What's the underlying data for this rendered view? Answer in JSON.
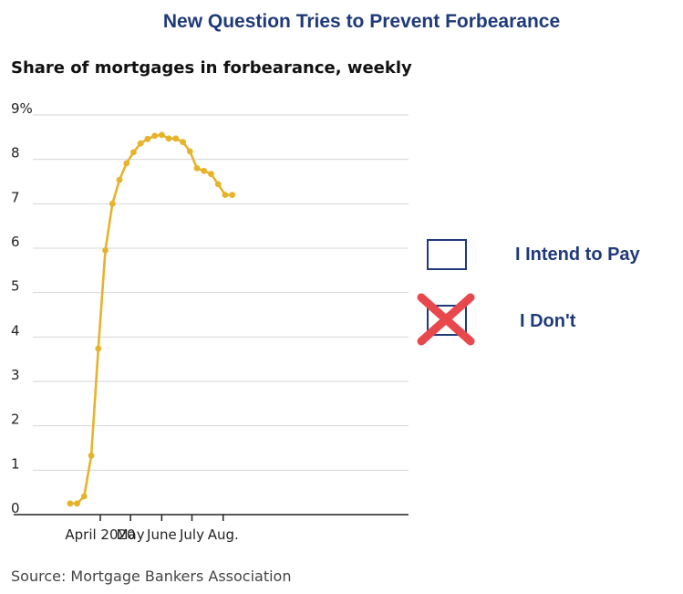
{
  "headline": "New Question Tries to Prevent Forbearance",
  "chart_data": {
    "type": "line",
    "title": "Share of mortgages in forbearance, weekly",
    "source": "Source: Mortgage Bankers Association",
    "xlabel": "",
    "ylabel": "",
    "ylim": [
      0,
      9
    ],
    "y_ticks": [
      "0",
      "1",
      "2",
      "3",
      "4",
      "5",
      "6",
      "7",
      "8",
      "9%"
    ],
    "x_ticks": [
      {
        "label": "April 2020",
        "date": "2020-04-01"
      },
      {
        "label": "May",
        "date": "2020-05-01"
      },
      {
        "label": "June",
        "date": "2020-06-01"
      },
      {
        "label": "July",
        "date": "2020-07-01"
      },
      {
        "label": "Aug.",
        "date": "2020-08-01"
      }
    ],
    "x_range": [
      "2020-03-01",
      "2020-08-13"
    ],
    "grid": true,
    "legend": "none",
    "line_color": "#e6b32a",
    "series": [
      {
        "x": [
          "2020-03-02",
          "2020-03-09",
          "2020-03-16",
          "2020-03-23",
          "2020-03-30",
          "2020-04-06",
          "2020-04-13",
          "2020-04-20",
          "2020-04-27",
          "2020-05-04",
          "2020-05-11",
          "2020-05-18",
          "2020-05-25",
          "2020-06-01",
          "2020-06-08",
          "2020-06-15",
          "2020-06-22",
          "2020-06-29",
          "2020-07-06",
          "2020-07-13",
          "2020-07-20",
          "2020-07-27",
          "2020-08-03",
          "2020-08-10"
        ],
        "y": [
          0.25,
          0.25,
          0.41,
          1.33,
          3.74,
          5.95,
          7.0,
          7.54,
          7.91,
          8.16,
          8.36,
          8.46,
          8.53,
          8.55,
          8.47,
          8.47,
          8.39,
          8.18,
          7.8,
          7.74,
          7.67,
          7.44,
          7.2,
          7.2
        ]
      }
    ]
  },
  "ballot": {
    "option_pay": "I Intend to Pay",
    "option_dont": "I Don't",
    "mark_color": "#e8474c"
  }
}
